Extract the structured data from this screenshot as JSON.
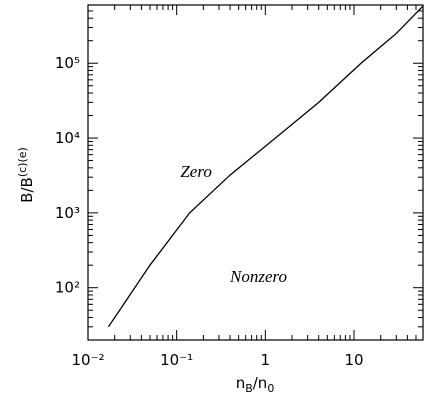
{
  "chart_data": {
    "type": "line",
    "xlabel": [
      "n",
      "B",
      "/n",
      "0"
    ],
    "ylabel": [
      "B/B",
      "(c)(e)"
    ],
    "annotations": [
      {
        "text": "Zero",
        "x": 0.11,
        "y": 3000
      },
      {
        "text": "Nonzero",
        "x": 0.4,
        "y": 120
      }
    ],
    "xlog": true,
    "ylog": true,
    "xlim": [
      0.01,
      60
    ],
    "ylim": [
      20,
      600000
    ],
    "xticks": [
      {
        "value": 0.01,
        "label": "10⁻²"
      },
      {
        "value": 0.1,
        "label": "10⁻¹"
      },
      1,
      10
    ],
    "yticks": [
      {
        "value": 100,
        "label": "10²"
      },
      {
        "value": 1000,
        "label": "10³"
      },
      {
        "value": 10000,
        "label": "10⁴"
      },
      {
        "value": 100000,
        "label": "10⁵"
      }
    ],
    "series": [
      {
        "color": "#000000",
        "x": [
          0.017,
          0.05,
          0.14,
          0.4,
          1.3,
          4,
          12,
          30,
          60
        ],
        "values": [
          30,
          200,
          1000,
          3200,
          10000,
          30000,
          100000,
          250000,
          580000
        ]
      }
    ]
  }
}
